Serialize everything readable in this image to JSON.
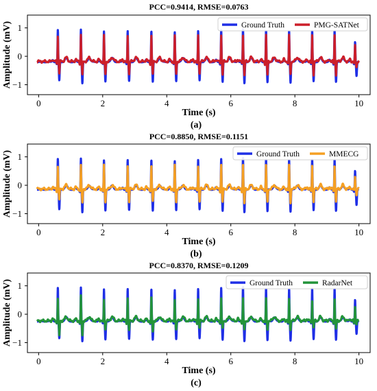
{
  "chart_data": [
    {
      "type": "line",
      "title": "PCC=0.9414, RMSE=0.0763",
      "xlabel": "Time (s)",
      "ylabel": "Amplitude (mV)",
      "panel_label": "(a)",
      "xlim": [
        -0.35,
        10.35
      ],
      "ylim": [
        -1.35,
        1.45
      ],
      "xticks": [
        0,
        2,
        4,
        6,
        8,
        10
      ],
      "yticks": [
        -1,
        0,
        1
      ],
      "legend_position": "top-right",
      "series": [
        {
          "name": "Ground Truth",
          "color": "#1f2fe6"
        },
        {
          "name": "PMG-SATNet",
          "color": "#cc1f2a"
        }
      ],
      "beat_times": [
        0.6,
        1.32,
        2.04,
        2.78,
        3.52,
        4.25,
        4.98,
        5.7,
        6.38,
        7.1,
        7.82,
        8.54,
        9.24,
        9.88
      ],
      "ground_truth_peaks": [
        0.92,
        0.95,
        0.87,
        0.88,
        0.9,
        0.85,
        0.88,
        0.93,
        0.98,
        0.92,
        0.91,
        0.9,
        0.92,
        0.5
      ],
      "ground_truth_troughs": [
        -0.85,
        -0.95,
        -0.88,
        -0.88,
        -0.9,
        -0.87,
        -0.85,
        -0.9,
        -0.95,
        -0.92,
        -0.92,
        -0.88,
        -0.9,
        -0.7
      ],
      "prediction_peaks": [
        0.7,
        0.75,
        0.72,
        0.72,
        0.73,
        0.7,
        0.72,
        0.75,
        0.78,
        0.75,
        0.74,
        0.72,
        0.74,
        0.35
      ],
      "prediction_troughs": [
        -0.6,
        -0.7,
        -0.65,
        -0.65,
        -0.66,
        -0.64,
        -0.62,
        -0.66,
        -0.7,
        -0.68,
        -0.67,
        -0.65,
        -0.66,
        -0.4
      ],
      "baseline": -0.2
    },
    {
      "type": "line",
      "title": "PCC=0.8850, RMSE=0.1151",
      "xlabel": "Time (s)",
      "ylabel": "Amplitude (mV)",
      "panel_label": "(b)",
      "xlim": [
        -0.35,
        10.35
      ],
      "ylim": [
        -1.35,
        1.45
      ],
      "xticks": [
        0,
        2,
        4,
        6,
        8,
        10
      ],
      "yticks": [
        -1,
        0,
        1
      ],
      "legend_position": "top-right",
      "series": [
        {
          "name": "Ground Truth",
          "color": "#1f2fe6"
        },
        {
          "name": "MMECG",
          "color": "#f5a023"
        }
      ],
      "beat_times": [
        0.6,
        1.32,
        2.04,
        2.78,
        3.52,
        4.25,
        4.98,
        5.7,
        6.38,
        7.1,
        7.82,
        8.54,
        9.24,
        9.88
      ],
      "ground_truth_peaks": [
        0.92,
        0.95,
        0.87,
        0.88,
        0.9,
        0.85,
        0.88,
        0.93,
        0.98,
        0.92,
        0.91,
        0.9,
        0.92,
        0.5
      ],
      "ground_truth_troughs": [
        -0.85,
        -0.95,
        -0.88,
        -0.88,
        -0.9,
        -0.87,
        -0.85,
        -0.9,
        -0.95,
        -0.92,
        -0.92,
        -0.88,
        -0.9,
        -0.7
      ],
      "prediction_peaks": [
        0.65,
        0.7,
        0.66,
        0.68,
        0.68,
        0.66,
        0.68,
        0.7,
        0.72,
        0.7,
        0.7,
        0.68,
        0.7,
        0.3
      ],
      "prediction_troughs": [
        -0.55,
        -0.65,
        -0.6,
        -0.6,
        -0.62,
        -0.6,
        -0.58,
        -0.62,
        -0.66,
        -0.64,
        -0.62,
        -0.6,
        -0.62,
        -0.35
      ],
      "baseline": -0.15
    },
    {
      "type": "line",
      "title": "PCC=0.8370, RMSE=0.1209",
      "xlabel": "Time (s)",
      "ylabel": "Amplitude (mV)",
      "panel_label": "(c)",
      "xlim": [
        -0.35,
        10.35
      ],
      "ylim": [
        -1.35,
        1.45
      ],
      "xticks": [
        0,
        2,
        4,
        6,
        8,
        10
      ],
      "yticks": [
        -1,
        0,
        1
      ],
      "legend_position": "top-right",
      "series": [
        {
          "name": "Ground Truth",
          "color": "#1f2fe6"
        },
        {
          "name": "RadarNet",
          "color": "#23943a"
        }
      ],
      "beat_times": [
        0.6,
        1.32,
        2.04,
        2.78,
        3.52,
        4.25,
        4.98,
        5.7,
        6.38,
        7.1,
        7.82,
        8.54,
        9.24,
        9.88
      ],
      "ground_truth_peaks": [
        0.92,
        0.95,
        0.87,
        0.88,
        0.9,
        0.85,
        0.88,
        0.93,
        0.98,
        0.92,
        0.91,
        0.9,
        0.92,
        0.5
      ],
      "ground_truth_troughs": [
        -0.85,
        -0.95,
        -0.88,
        -0.88,
        -0.9,
        -0.87,
        -0.85,
        -0.9,
        -0.95,
        -0.92,
        -0.92,
        -0.88,
        -0.9,
        -0.7
      ],
      "prediction_peaks": [
        0.55,
        0.6,
        0.5,
        0.55,
        0.55,
        0.5,
        0.52,
        0.55,
        0.56,
        0.55,
        0.52,
        0.5,
        0.55,
        0.25
      ],
      "prediction_troughs": [
        -0.8,
        -0.75,
        -0.55,
        -0.6,
        -0.62,
        -0.55,
        -0.5,
        -0.55,
        -0.6,
        -0.55,
        -0.55,
        -0.5,
        -0.55,
        -0.35
      ],
      "baseline": -0.25
    }
  ]
}
